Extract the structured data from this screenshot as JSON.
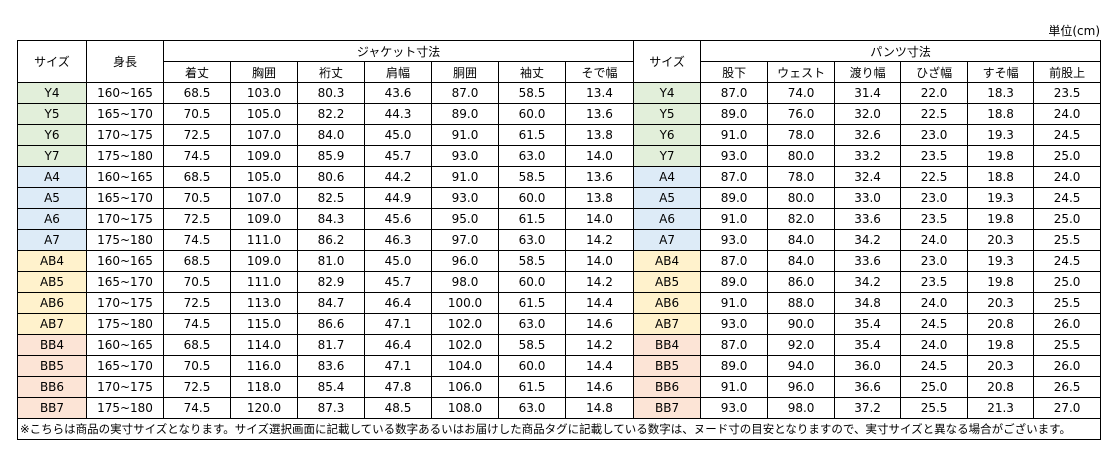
{
  "unit": "単位(cm)",
  "table": {
    "header_top": [
      "サイズ",
      "身長",
      "ジャケット寸法",
      "サイズ",
      "パンツ寸法"
    ],
    "header_sub": [
      "着丈",
      "胸囲",
      "裄丈",
      "肩幅",
      "胴囲",
      "袖丈",
      "そで幅",
      "股下",
      "ウェスト",
      "渡り幅",
      "ひざ幅",
      "すそ幅",
      "前股上"
    ],
    "rows": [
      {
        "color": "#e2efda",
        "cells": [
          "Y4",
          "160~165",
          "68.5",
          "103.0",
          "80.3",
          "43.6",
          "87.0",
          "58.5",
          "13.4",
          "Y4",
          "87.0",
          "74.0",
          "31.4",
          "22.0",
          "18.3",
          "23.5"
        ]
      },
      {
        "color": "#e2efda",
        "cells": [
          "Y5",
          "165~170",
          "70.5",
          "105.0",
          "82.2",
          "44.3",
          "89.0",
          "60.0",
          "13.6",
          "Y5",
          "89.0",
          "76.0",
          "32.0",
          "22.5",
          "18.8",
          "24.0"
        ]
      },
      {
        "color": "#e2efda",
        "cells": [
          "Y6",
          "170~175",
          "72.5",
          "107.0",
          "84.0",
          "45.0",
          "91.0",
          "61.5",
          "13.8",
          "Y6",
          "91.0",
          "78.0",
          "32.6",
          "23.0",
          "19.3",
          "24.5"
        ]
      },
      {
        "color": "#e2efda",
        "cells": [
          "Y7",
          "175~180",
          "74.5",
          "109.0",
          "85.9",
          "45.7",
          "93.0",
          "63.0",
          "14.0",
          "Y7",
          "93.0",
          "80.0",
          "33.2",
          "23.5",
          "19.8",
          "25.0"
        ]
      },
      {
        "color": "#ddebf7",
        "cells": [
          "A4",
          "160~165",
          "68.5",
          "105.0",
          "80.6",
          "44.2",
          "91.0",
          "58.5",
          "13.6",
          "A4",
          "87.0",
          "78.0",
          "32.4",
          "22.5",
          "18.8",
          "24.0"
        ]
      },
      {
        "color": "#ddebf7",
        "cells": [
          "A5",
          "165~170",
          "70.5",
          "107.0",
          "82.5",
          "44.9",
          "93.0",
          "60.0",
          "13.8",
          "A5",
          "89.0",
          "80.0",
          "33.0",
          "23.0",
          "19.3",
          "24.5"
        ]
      },
      {
        "color": "#ddebf7",
        "cells": [
          "A6",
          "170~175",
          "72.5",
          "109.0",
          "84.3",
          "45.6",
          "95.0",
          "61.5",
          "14.0",
          "A6",
          "91.0",
          "82.0",
          "33.6",
          "23.5",
          "19.8",
          "25.0"
        ]
      },
      {
        "color": "#ddebf7",
        "cells": [
          "A7",
          "175~180",
          "74.5",
          "111.0",
          "86.2",
          "46.3",
          "97.0",
          "63.0",
          "14.2",
          "A7",
          "93.0",
          "84.0",
          "34.2",
          "24.0",
          "20.3",
          "25.5"
        ]
      },
      {
        "color": "#fff2cc",
        "cells": [
          "AB4",
          "160~165",
          "68.5",
          "109.0",
          "81.0",
          "45.0",
          "96.0",
          "58.5",
          "14.0",
          "AB4",
          "87.0",
          "84.0",
          "33.6",
          "23.0",
          "19.3",
          "24.5"
        ]
      },
      {
        "color": "#fff2cc",
        "cells": [
          "AB5",
          "165~170",
          "70.5",
          "111.0",
          "82.9",
          "45.7",
          "98.0",
          "60.0",
          "14.2",
          "AB5",
          "89.0",
          "86.0",
          "34.2",
          "23.5",
          "19.8",
          "25.0"
        ]
      },
      {
        "color": "#fff2cc",
        "cells": [
          "AB6",
          "170~175",
          "72.5",
          "113.0",
          "84.7",
          "46.4",
          "100.0",
          "61.5",
          "14.4",
          "AB6",
          "91.0",
          "88.0",
          "34.8",
          "24.0",
          "20.3",
          "25.5"
        ]
      },
      {
        "color": "#fff2cc",
        "cells": [
          "AB7",
          "175~180",
          "74.5",
          "115.0",
          "86.6",
          "47.1",
          "102.0",
          "63.0",
          "14.6",
          "AB7",
          "93.0",
          "90.0",
          "35.4",
          "24.5",
          "20.8",
          "26.0"
        ]
      },
      {
        "color": "#fce4d6",
        "cells": [
          "BB4",
          "160~165",
          "68.5",
          "114.0",
          "81.7",
          "46.4",
          "102.0",
          "58.5",
          "14.2",
          "BB4",
          "87.0",
          "92.0",
          "35.4",
          "24.0",
          "19.8",
          "25.5"
        ]
      },
      {
        "color": "#fce4d6",
        "cells": [
          "BB5",
          "165~170",
          "70.5",
          "116.0",
          "83.6",
          "47.1",
          "104.0",
          "60.0",
          "14.4",
          "BB5",
          "89.0",
          "94.0",
          "36.0",
          "24.5",
          "20.3",
          "26.0"
        ]
      },
      {
        "color": "#fce4d6",
        "cells": [
          "BB6",
          "170~175",
          "72.5",
          "118.0",
          "85.4",
          "47.8",
          "106.0",
          "61.5",
          "14.6",
          "BB6",
          "91.0",
          "96.0",
          "36.6",
          "25.0",
          "20.8",
          "26.5"
        ]
      },
      {
        "color": "#fce4d6",
        "cells": [
          "BB7",
          "175~180",
          "74.5",
          "120.0",
          "87.3",
          "48.5",
          "108.0",
          "63.0",
          "14.8",
          "BB7",
          "93.0",
          "98.0",
          "37.2",
          "25.5",
          "21.3",
          "27.0"
        ]
      }
    ],
    "footnote": "※こちらは商品の実寸サイズとなります。サイズ選択画面に記載している数字あるいはお届けした商品タグに記載している数字は、ヌード寸の目安となりますので、実寸サイズと異なる場合がございます。"
  }
}
